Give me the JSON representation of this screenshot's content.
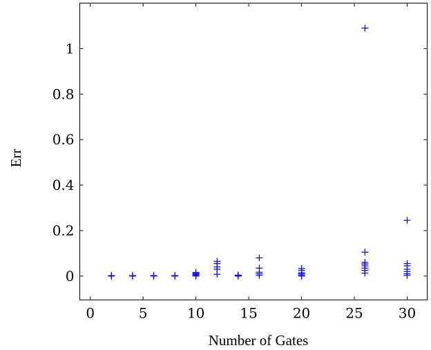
{
  "chart_data": {
    "type": "scatter",
    "title": "",
    "xlabel": "Number of Gates",
    "ylabel": "Err",
    "xlim": [
      -1,
      31.9
    ],
    "ylim": [
      -0.105,
      1.2
    ],
    "x_ticks": [
      0,
      5,
      10,
      15,
      20,
      25,
      30
    ],
    "y_ticks": [
      0,
      0.2,
      0.4,
      0.6,
      0.8,
      1
    ],
    "x_tick_labels": [
      "0",
      "5",
      "10",
      "15",
      "20",
      "25",
      "30"
    ],
    "y_tick_labels": [
      "0",
      "0.2",
      "0.4",
      "0.6",
      "0.8",
      "1"
    ],
    "grid": false,
    "marker": "plus",
    "color": "#0000ff",
    "points": [
      [
        2,
        0.0
      ],
      [
        2,
        0.001
      ],
      [
        2,
        0.002
      ],
      [
        4,
        0.0
      ],
      [
        4,
        0.001
      ],
      [
        4,
        0.002
      ],
      [
        6,
        0.0
      ],
      [
        6,
        0.001
      ],
      [
        6,
        0.002
      ],
      [
        8,
        0.0
      ],
      [
        8,
        0.001
      ],
      [
        8,
        0.002
      ],
      [
        10,
        0.0
      ],
      [
        10,
        0.004
      ],
      [
        10,
        0.008
      ],
      [
        10,
        0.012
      ],
      [
        10,
        0.016
      ],
      [
        12,
        0.008
      ],
      [
        12,
        0.03
      ],
      [
        12,
        0.04
      ],
      [
        12,
        0.055
      ],
      [
        12,
        0.065
      ],
      [
        14,
        0.0
      ],
      [
        14,
        0.002
      ],
      [
        14,
        0.004
      ],
      [
        16,
        0.003
      ],
      [
        16,
        0.01
      ],
      [
        16,
        0.017
      ],
      [
        16,
        0.035
      ],
      [
        16,
        0.08
      ],
      [
        20,
        0.0
      ],
      [
        20,
        0.005
      ],
      [
        20,
        0.01
      ],
      [
        20,
        0.015
      ],
      [
        20,
        0.025
      ],
      [
        20,
        0.033
      ],
      [
        26,
        0.013
      ],
      [
        26,
        0.025
      ],
      [
        26,
        0.035
      ],
      [
        26,
        0.045
      ],
      [
        26,
        0.053
      ],
      [
        26,
        0.06
      ],
      [
        26,
        0.105
      ],
      [
        26,
        1.09
      ],
      [
        30,
        0.003
      ],
      [
        30,
        0.01
      ],
      [
        30,
        0.02
      ],
      [
        30,
        0.03
      ],
      [
        30,
        0.045
      ],
      [
        30,
        0.055
      ],
      [
        30,
        0.245
      ]
    ]
  }
}
